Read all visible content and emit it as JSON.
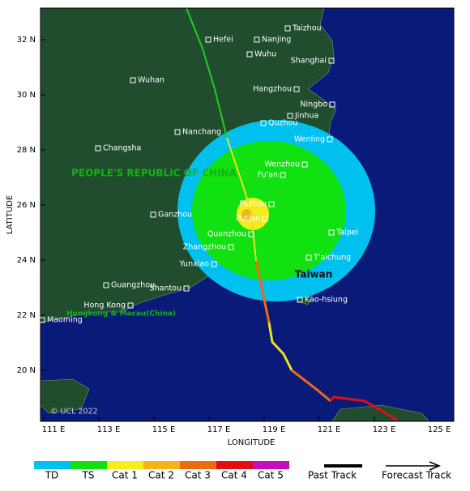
{
  "axes": {
    "y_label": "LATITUDE",
    "x_label": "LONGITUDE",
    "lat_ticks": [
      "32 N",
      "30 N",
      "28 N",
      "26 N",
      "24 N",
      "22 N",
      "20 N"
    ],
    "lon_ticks": [
      "111 E",
      "113 E",
      "115 E",
      "117 E",
      "119 E",
      "121 E",
      "123 E",
      "125 E"
    ]
  },
  "regions": {
    "china": "PEOPLE'S REPUBLIC OF CHINA",
    "taiwan": "Taiwan",
    "hk_macau": "Hongkong & Macau(China)"
  },
  "copyright": "© UCL 2022",
  "cities": [
    "Taizhou",
    "Hefei",
    "Nanjing",
    "Wuhu",
    "Shanghai",
    "Wuhan",
    "Hangzhou",
    "Ningbo",
    "Jinhua",
    "Quzhou",
    "Nanchang",
    "Wenling",
    "Changsha",
    "Wenzhou",
    "Fu'an",
    "Fuzhou",
    "Putian",
    "Ganzhou",
    "Taipei",
    "Quanzhou",
    "Zhangzhou",
    "T'aichung",
    "Yunxiao",
    "Guangzhou",
    "Shantou",
    "Kao-hsiung",
    "Hong Kong",
    "Maoming"
  ],
  "legend": {
    "categories": [
      "TD",
      "TS",
      "Cat 1",
      "Cat 2",
      "Cat 3",
      "Cat 4",
      "Cat 5"
    ],
    "past": "Past Track",
    "forecast": "Forecast Track"
  }
}
